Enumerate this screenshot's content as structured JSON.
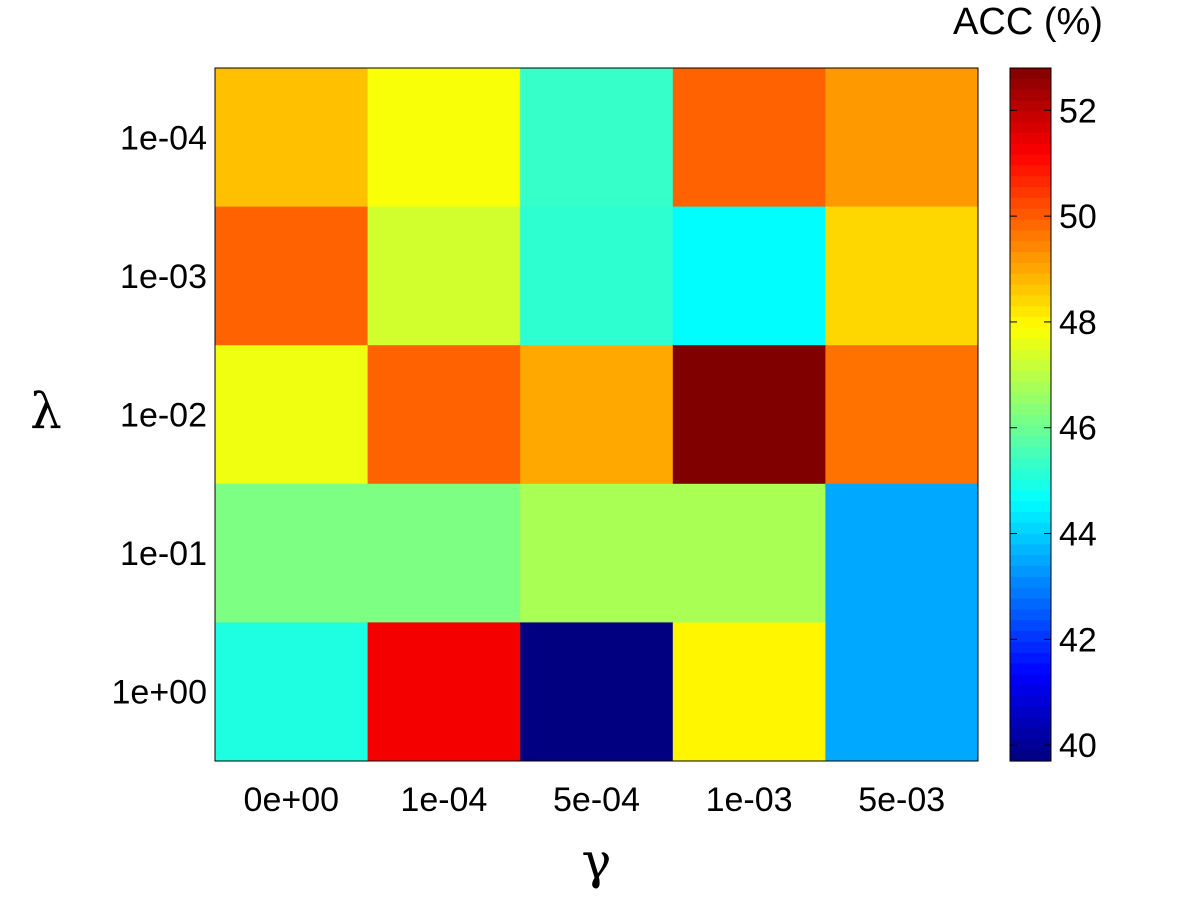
{
  "chart_data": {
    "type": "heatmap",
    "xlabel": "γ",
    "ylabel": "λ",
    "x_categories": [
      "0e+00",
      "1e-04",
      "5e-04",
      "1e-03",
      "5e-03"
    ],
    "y_categories": [
      "1e-04",
      "1e-03",
      "1e-02",
      "1e-01",
      "1e+00"
    ],
    "values": [
      [
        48.7,
        47.8,
        45.3,
        49.9,
        49.2
      ],
      [
        49.9,
        47.3,
        45.2,
        44.6,
        48.4
      ],
      [
        47.7,
        49.9,
        49.0,
        52.8,
        49.7
      ],
      [
        46.2,
        46.2,
        46.8,
        46.8,
        43.5
      ],
      [
        45.0,
        51.3,
        39.7,
        48.0,
        43.5
      ]
    ],
    "colorbar": {
      "title": "ACC (%)",
      "min": 39.7,
      "max": 52.8,
      "ticks": [
        40,
        42,
        44,
        46,
        48,
        50,
        52
      ],
      "colormap": "jet"
    }
  }
}
